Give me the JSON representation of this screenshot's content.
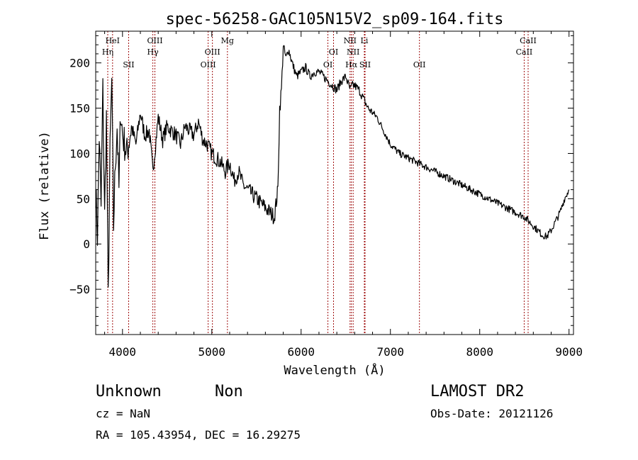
{
  "chart_data": {
    "type": "line",
    "title": "spec-56258-GAC105N15V2_sp09-164.fits",
    "xlabel": "Wavelength (Å)",
    "ylabel": "Flux (relative)",
    "xlim": [
      3700,
      9050
    ],
    "ylim": [
      -100,
      235
    ],
    "xticks": [
      4000,
      5000,
      6000,
      7000,
      8000,
      9000
    ],
    "xtick_labels": [
      "4000",
      "5000",
      "6000",
      "7000",
      "8000",
      "9000"
    ],
    "yticks": [
      -50,
      0,
      50,
      100,
      150,
      200
    ],
    "ytick_labels": [
      "−50",
      "0",
      "50",
      "100",
      "150",
      "200"
    ],
    "line_color": "#000000",
    "marker_color": "#a01010",
    "series": [
      {
        "x": [
          3700,
          3720,
          3740,
          3760,
          3780,
          3800,
          3820,
          3840,
          3860,
          3880,
          3900,
          3920,
          3940,
          3960,
          3980,
          4000,
          4050,
          4100,
          4150,
          4200,
          4250,
          4300,
          4340,
          4400,
          4450,
          4500,
          4550,
          4600,
          4650,
          4700,
          4750,
          4800,
          4850,
          4900,
          4950,
          5000,
          5050,
          5100,
          5150,
          5200,
          5250,
          5300,
          5350,
          5400,
          5450,
          5500,
          5550,
          5600,
          5650,
          5700,
          5740,
          5760,
          5780,
          5800,
          5830,
          5860,
          5900,
          5950,
          6000,
          6050,
          6100,
          6150,
          6200,
          6250,
          6300,
          6350,
          6400,
          6450,
          6500,
          6550,
          6570,
          6600,
          6650,
          6700,
          6750,
          6800,
          6850,
          6900,
          6950,
          7000,
          7100,
          7200,
          7300,
          7400,
          7500,
          7600,
          7700,
          7800,
          7900,
          8000,
          8100,
          8200,
          8300,
          8400,
          8500,
          8550,
          8600,
          8650,
          8700,
          8750,
          8800,
          8850,
          8900,
          8950,
          9000
        ],
        "y": [
          60,
          10,
          120,
          40,
          170,
          30,
          140,
          -60,
          100,
          180,
          20,
          90,
          130,
          60,
          150,
          120,
          100,
          130,
          110,
          145,
          120,
          125,
          80,
          140,
          115,
          130,
          125,
          120,
          110,
          130,
          125,
          120,
          135,
          115,
          110,
          100,
          95,
          90,
          80,
          90,
          70,
          80,
          65,
          60,
          55,
          50,
          45,
          40,
          35,
          30,
          60,
          150,
          170,
          220,
          205,
          215,
          200,
          185,
          190,
          195,
          185,
          190,
          190,
          185,
          180,
          175,
          170,
          180,
          185,
          170,
          175,
          175,
          170,
          160,
          150,
          145,
          140,
          130,
          120,
          110,
          100,
          95,
          90,
          85,
          80,
          75,
          70,
          65,
          60,
          55,
          50,
          45,
          40,
          35,
          30,
          25,
          20,
          15,
          10,
          8,
          15,
          25,
          35,
          50,
          60
        ]
      }
    ],
    "lines": [
      {
        "label": "HeI",
        "x": 3889,
        "row": 1
      },
      {
        "label": "Hη",
        "x": 3835,
        "row": 2
      },
      {
        "label": "SII",
        "x": 4069,
        "row": 3
      },
      {
        "label": "OIII",
        "x": 4363,
        "row": 1
      },
      {
        "label": "Hγ",
        "x": 4340,
        "row": 2
      },
      {
        "label": "OIII",
        "x": 5007,
        "row": 2
      },
      {
        "label": "OIII",
        "x": 4959,
        "row": 3
      },
      {
        "label": "Mg",
        "x": 5175,
        "row": 1
      },
      {
        "label": "NII",
        "x": 6548,
        "row": 1
      },
      {
        "label": "Li",
        "x": 6708,
        "row": 1
      },
      {
        "label": "OI",
        "x": 6363,
        "row": 2
      },
      {
        "label": "NII",
        "x": 6583,
        "row": 2
      },
      {
        "label": "OI",
        "x": 6300,
        "row": 3
      },
      {
        "label": "Hα",
        "x": 6563,
        "row": 3
      },
      {
        "label": "SII",
        "x": 6716,
        "row": 3
      },
      {
        "label": "OII",
        "x": 7325,
        "row": 3
      },
      {
        "label": "CaII",
        "x": 8542,
        "row": 1
      },
      {
        "label": "CaII",
        "x": 8498,
        "row": 2
      }
    ]
  },
  "info": {
    "class": "Unknown",
    "subclass": "Non",
    "survey": "LAMOST DR2",
    "cz": "cz = NaN",
    "obs_date": "Obs-Date: 20121126",
    "coords": "RA = 105.43954, DEC =  16.29275"
  }
}
